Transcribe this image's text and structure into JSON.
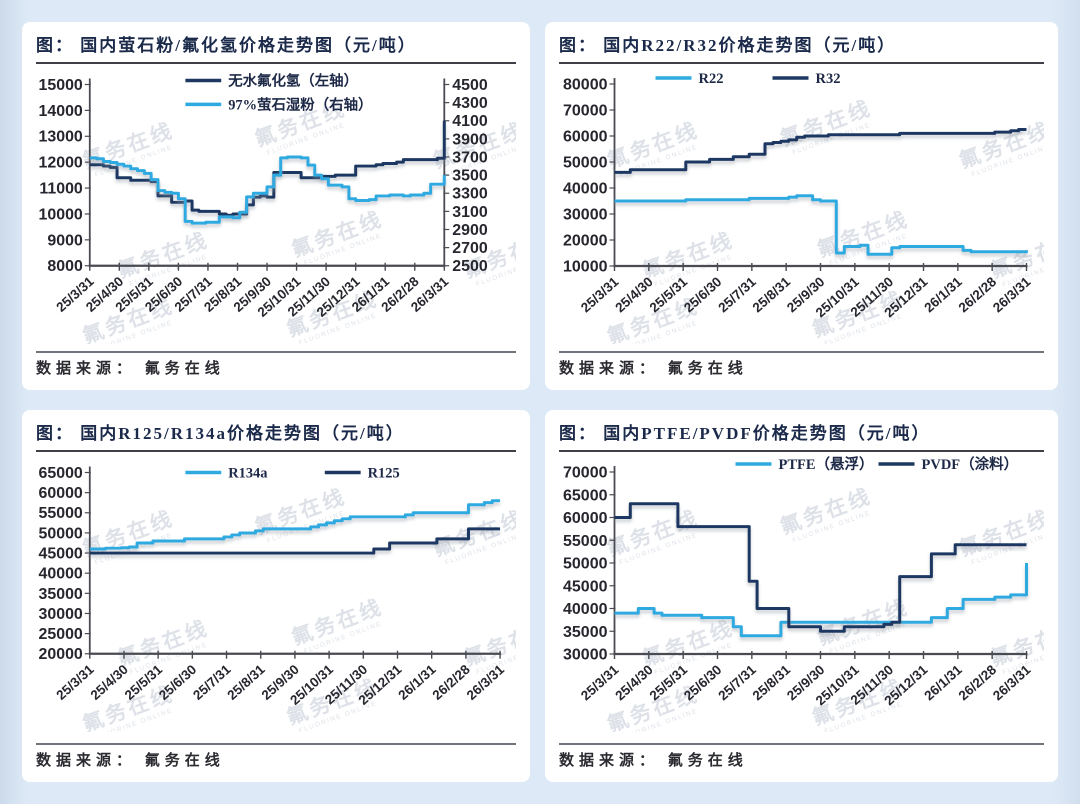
{
  "page": {
    "background": "#DDE9F6",
    "card_background": "#FFFFFF"
  },
  "colors": {
    "series_light_blue": "#2FAAE1",
    "series_navy": "#1E3862",
    "title_text": "#1B2A4A",
    "axis_text": "#26262E",
    "legend_text": "#1D2947",
    "watermark": "#C3CBD6",
    "axis_line": "#4A4A52",
    "rule_dark": "#3F3F48",
    "rule_gray": "#70757D"
  },
  "watermark": {
    "text": "氟务在线",
    "subtext": "FLUORINE ONLINE"
  },
  "x_tick_labels": [
    "25/3/31",
    "25/4/30",
    "25/5/31",
    "25/6/30",
    "25/7/31",
    "25/8/31",
    "25/9/30",
    "25/10/31",
    "25/11/30",
    "25/12/31",
    "26/1/31",
    "26/2/28",
    "26/3/31"
  ],
  "charts": [
    {
      "title": "图： 国内萤石粉/氟化氢价格走势图（元/吨）",
      "source": "数据来源： 氟务在线",
      "chart_data": {
        "type": "line",
        "x_tick_labels": [
          "25/3/31",
          "25/4/30",
          "25/5/31",
          "25/6/30",
          "25/7/31",
          "25/8/31",
          "25/9/30",
          "25/10/31",
          "25/11/30",
          "25/12/31",
          "26/1/31",
          "26/2/28",
          "26/3/31"
        ],
        "axes": {
          "left": {
            "min": 8000,
            "max": 15000,
            "step": 1000
          },
          "right": {
            "min": 2500,
            "max": 4500,
            "step": 200
          }
        },
        "legend": {
          "layout": "stacked",
          "positions": [
            [
              150,
              14
            ],
            [
              150,
              38
            ]
          ]
        },
        "series": [
          {
            "name": "无水氟化氢（左轴）",
            "color": "navy",
            "axis": "left",
            "values": [
              11900,
              11900,
              11850,
              11800,
              11400,
              11400,
              11300,
              11300,
              11300,
              11250,
              10700,
              10700,
              10450,
              10450,
              10500,
              10150,
              10100,
              10100,
              10100,
              10000,
              9950,
              10000,
              10000,
              10350,
              10650,
              10700,
              10650,
              11600,
              11600,
              11600,
              11600,
              11400,
              11400,
              11400,
              11450,
              11450,
              11500,
              11500,
              11500,
              11850,
              11850,
              11850,
              11900,
              11950,
              11950,
              12000,
              12100,
              12100,
              12100,
              12100,
              12100,
              12150,
              13600
            ]
          },
          {
            "name": "97%萤石湿粉（右轴）",
            "color": "light_blue",
            "axis": "right",
            "values": [
              3690,
              3680,
              3650,
              3640,
              3620,
              3600,
              3570,
              3550,
              3520,
              3450,
              3330,
              3310,
              3300,
              3240,
              2990,
              2970,
              2970,
              2980,
              2980,
              3040,
              3040,
              3030,
              3090,
              3260,
              3300,
              3300,
              3370,
              3500,
              3690,
              3700,
              3700,
              3690,
              3610,
              3500,
              3460,
              3390,
              3390,
              3370,
              3240,
              3220,
              3220,
              3230,
              3270,
              3270,
              3280,
              3280,
              3270,
              3280,
              3280,
              3300,
              3400,
              3400,
              3500
            ]
          }
        ]
      }
    },
    {
      "title": "图： 国内R22/R32价格走势图（元/吨）",
      "source": "数据来源： 氟务在线",
      "chart_data": {
        "type": "line",
        "x_tick_labels": [
          "25/3/31",
          "25/4/30",
          "25/5/31",
          "25/6/30",
          "25/7/31",
          "25/8/31",
          "25/9/30",
          "25/10/31",
          "25/11/30",
          "25/12/31",
          "26/1/31",
          "26/2/28",
          "26/3/31"
        ],
        "axes": {
          "left": {
            "min": 10000,
            "max": 80000,
            "step": 10000
          }
        },
        "legend": {
          "layout": "row",
          "positions": [
            [
              95,
              12
            ],
            [
              212,
              12
            ]
          ]
        },
        "series": [
          {
            "name": "R22",
            "color": "light_blue",
            "axis": "left",
            "values": [
              35000,
              35000,
              35000,
              35000,
              35000,
              35000,
              35000,
              35000,
              35000,
              35500,
              35500,
              35500,
              35500,
              35500,
              35500,
              35500,
              35500,
              36000,
              36000,
              36000,
              36000,
              36000,
              36500,
              37000,
              37000,
              35500,
              35000,
              35000,
              15000,
              17500,
              17500,
              18000,
              14500,
              14500,
              14500,
              17000,
              17500,
              17500,
              17500,
              17500,
              17500,
              17500,
              17500,
              17500,
              16000,
              15500,
              15500,
              15500,
              15500,
              15500,
              15500,
              15500,
              16000
            ]
          },
          {
            "name": "R32",
            "color": "navy",
            "axis": "left",
            "values": [
              46000,
              46000,
              47000,
              47000,
              47000,
              47000,
              47000,
              47000,
              47000,
              50000,
              50000,
              50000,
              51000,
              51000,
              51000,
              52000,
              52000,
              53000,
              53000,
              57000,
              57500,
              58000,
              58500,
              59500,
              60000,
              60000,
              60000,
              60500,
              60500,
              60500,
              60500,
              60500,
              60500,
              60500,
              60500,
              60500,
              61000,
              61000,
              61000,
              61000,
              61000,
              61000,
              61000,
              61000,
              61000,
              61000,
              61000,
              61000,
              61500,
              61500,
              62000,
              62500,
              62500
            ]
          }
        ]
      }
    },
    {
      "title": "图： 国内R125/R134a价格走势图（元/吨）",
      "source": "数据来源： 氟务在线",
      "chart_data": {
        "type": "line",
        "x_tick_labels": [
          "25/3/31",
          "25/4/30",
          "25/5/31",
          "25/6/30",
          "25/7/31",
          "25/8/31",
          "25/9/30",
          "25/10/31",
          "25/11/30",
          "25/12/31",
          "26/1/31",
          "26/2/28",
          "26/3/31"
        ],
        "axes": {
          "left": {
            "min": 20000,
            "max": 65000,
            "step": 5000
          }
        },
        "legend": {
          "layout": "row",
          "positions": [
            [
              150,
              18
            ],
            [
              290,
              18
            ]
          ]
        },
        "series": [
          {
            "name": "R134a",
            "color": "light_blue",
            "axis": "left",
            "values": [
              46000,
              46000,
              46200,
              46200,
              46300,
              46500,
              47500,
              47500,
              48000,
              48000,
              48000,
              48000,
              48500,
              48500,
              48500,
              48500,
              48500,
              49000,
              49500,
              50000,
              50000,
              50500,
              51000,
              51000,
              51000,
              51000,
              51000,
              51000,
              51500,
              52000,
              52500,
              53000,
              53500,
              54000,
              54000,
              54000,
              54000,
              54000,
              54000,
              54000,
              54500,
              55000,
              55000,
              55000,
              55000,
              55000,
              55000,
              55000,
              57000,
              57000,
              57500,
              58000,
              58000
            ]
          },
          {
            "name": "R125",
            "color": "navy",
            "axis": "left",
            "values": [
              45000,
              45000,
              45000,
              45000,
              45000,
              45000,
              45000,
              45000,
              45000,
              45000,
              45000,
              45000,
              45000,
              45000,
              45000,
              45000,
              45000,
              45000,
              45000,
              45000,
              45000,
              45000,
              45000,
              45000,
              45000,
              45000,
              45000,
              45000,
              45000,
              45000,
              45000,
              45000,
              45000,
              45000,
              45000,
              45000,
              46000,
              46000,
              47500,
              47500,
              47500,
              47500,
              47500,
              47500,
              48500,
              48500,
              48500,
              48500,
              51000,
              51000,
              51000,
              51000,
              51000
            ]
          }
        ]
      }
    },
    {
      "title": "图： 国内PTFE/PVDF价格走势图（元/吨）",
      "source": "数据来源： 氟务在线",
      "chart_data": {
        "type": "line",
        "x_tick_labels": [
          "25/3/31",
          "25/4/30",
          "25/5/31",
          "25/6/30",
          "25/7/31",
          "25/8/31",
          "25/9/30",
          "25/10/31",
          "25/11/30",
          "25/12/31",
          "26/1/31",
          "26/2/28",
          "26/3/31"
        ],
        "axes": {
          "left": {
            "min": 30000,
            "max": 70000,
            "step": 5000
          }
        },
        "legend": {
          "layout": "row",
          "positions": [
            [
              175,
              10
            ],
            [
              318,
              10
            ]
          ]
        },
        "series": [
          {
            "name": "PTFE（悬浮）",
            "color": "light_blue",
            "axis": "left",
            "values": [
              39000,
              39000,
              39000,
              40000,
              40000,
              39000,
              38500,
              38500,
              38500,
              38500,
              38500,
              38000,
              38000,
              38000,
              38000,
              36000,
              34000,
              34000,
              34000,
              34000,
              34000,
              37000,
              37000,
              37000,
              37000,
              37000,
              37000,
              37000,
              37000,
              37000,
              37000,
              37000,
              37000,
              37000,
              37000,
              37000,
              37000,
              37000,
              37000,
              37000,
              38000,
              38000,
              40000,
              40000,
              42000,
              42000,
              42000,
              42000,
              42500,
              42500,
              43000,
              43000,
              50000
            ]
          },
          {
            "name": "PVDF（涂料）",
            "color": "navy",
            "axis": "left",
            "values": [
              60000,
              60000,
              63000,
              63000,
              63000,
              63000,
              63000,
              63000,
              58000,
              58000,
              58000,
              58000,
              58000,
              58000,
              58000,
              58000,
              58000,
              46000,
              40000,
              40000,
              40000,
              40000,
              36000,
              36000,
              36000,
              36000,
              35000,
              35000,
              35000,
              36000,
              36000,
              36000,
              36000,
              36000,
              36500,
              37000,
              47000,
              47000,
              47000,
              47000,
              52000,
              52000,
              52000,
              54000,
              54000,
              54000,
              54000,
              54000,
              54000,
              54000,
              54000,
              54000,
              54000
            ]
          }
        ]
      }
    }
  ]
}
